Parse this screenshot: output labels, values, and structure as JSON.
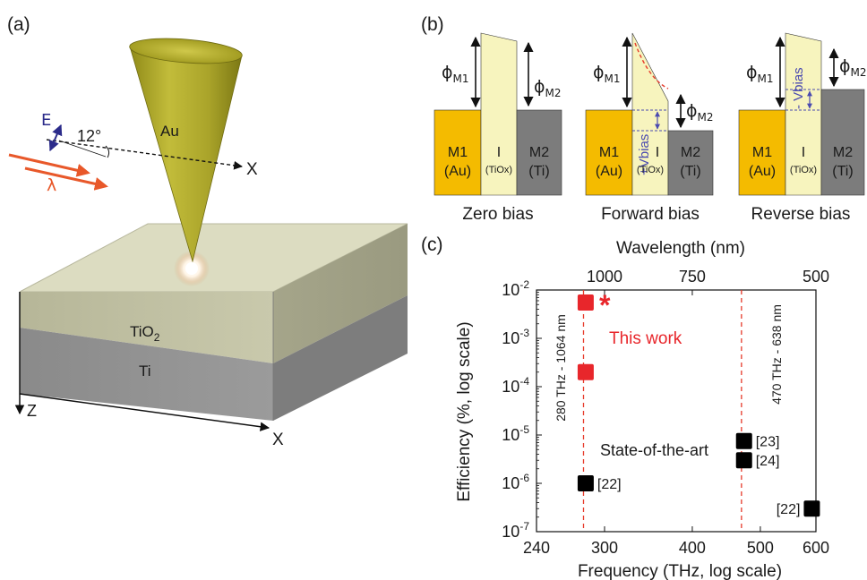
{
  "panel_a": {
    "label": "(a)",
    "tip_label": "Au",
    "layer_top": "TiO",
    "layer_top_sub": "2",
    "layer_bottom": "Ti",
    "angle_label": "12°",
    "field_label": "E",
    "wave_label": "λ",
    "axis_x": "X",
    "axis_x2": "X",
    "axis_z": "Z"
  },
  "panel_b": {
    "label": "(b)",
    "phi": "ϕ",
    "m1_sub": "M1",
    "m2_sub": "M2",
    "m1_name": "M1",
    "m1_material": "(Au)",
    "ins_name": "I",
    "ins_material": "(TiOx)",
    "m2_name": "M2",
    "m2_material": "(Ti)",
    "forward_bias_label": "+Vbias",
    "reverse_bias_label": "- Vbias",
    "captions": [
      "Zero bias",
      "Forward bias",
      "Reverse bias"
    ],
    "colors": {
      "m1": "#f4bb00",
      "insulator": "#f7f4be",
      "m2": "#7c7c7c",
      "bias": "#4a4ab0",
      "dash": "#e63a2a"
    }
  },
  "panel_c": {
    "label": "(c)",
    "star": "*",
    "this_work": "This work",
    "state_of_art": "State-of-the-art",
    "vline_left_label": "280 THz - 1064 nm",
    "vline_right_label": "470 THz - 638 nm"
  },
  "chart_data": {
    "type": "scatter",
    "xlabel": "Frequency (THz, log scale)",
    "ylabel": "Efficiency (%, log scale)",
    "top_xlabel": "Wavelength (nm)",
    "xscale": "log",
    "yscale": "log",
    "xlim": [
      240,
      600
    ],
    "ylim": [
      1e-07,
      0.01
    ],
    "x_ticks": [
      240,
      300,
      400,
      500,
      600
    ],
    "y_ticks": [
      {
        "value": 0.01,
        "base": "10",
        "exp": "-2"
      },
      {
        "value": 0.001,
        "base": "10",
        "exp": "-3"
      },
      {
        "value": 0.0001,
        "base": "10",
        "exp": "-4"
      },
      {
        "value": 1e-05,
        "base": "10",
        "exp": "-5"
      },
      {
        "value": 1e-06,
        "base": "10",
        "exp": "-6"
      },
      {
        "value": 1e-07,
        "base": "10",
        "exp": "-7"
      }
    ],
    "top_ticks": [
      {
        "label": "1000",
        "frequency": 300
      },
      {
        "label": "750",
        "frequency": 400
      },
      {
        "label": "500",
        "frequency": 600
      }
    ],
    "vlines": [
      280,
      470
    ],
    "series": [
      {
        "color": "#e8262b",
        "points": [
          {
            "x": 282,
            "y": 0.0055,
            "label": ""
          },
          {
            "x": 282,
            "y": 0.0002,
            "label": ""
          }
        ]
      },
      {
        "color": "#000000",
        "points": [
          {
            "x": 282,
            "y": 1e-06,
            "label": "[22]"
          },
          {
            "x": 474,
            "y": 7.5e-06,
            "label": "[23]"
          },
          {
            "x": 474,
            "y": 3e-06,
            "label": "[24]"
          },
          {
            "x": 592,
            "y": 3e-07,
            "label": "[22]"
          }
        ]
      }
    ]
  }
}
